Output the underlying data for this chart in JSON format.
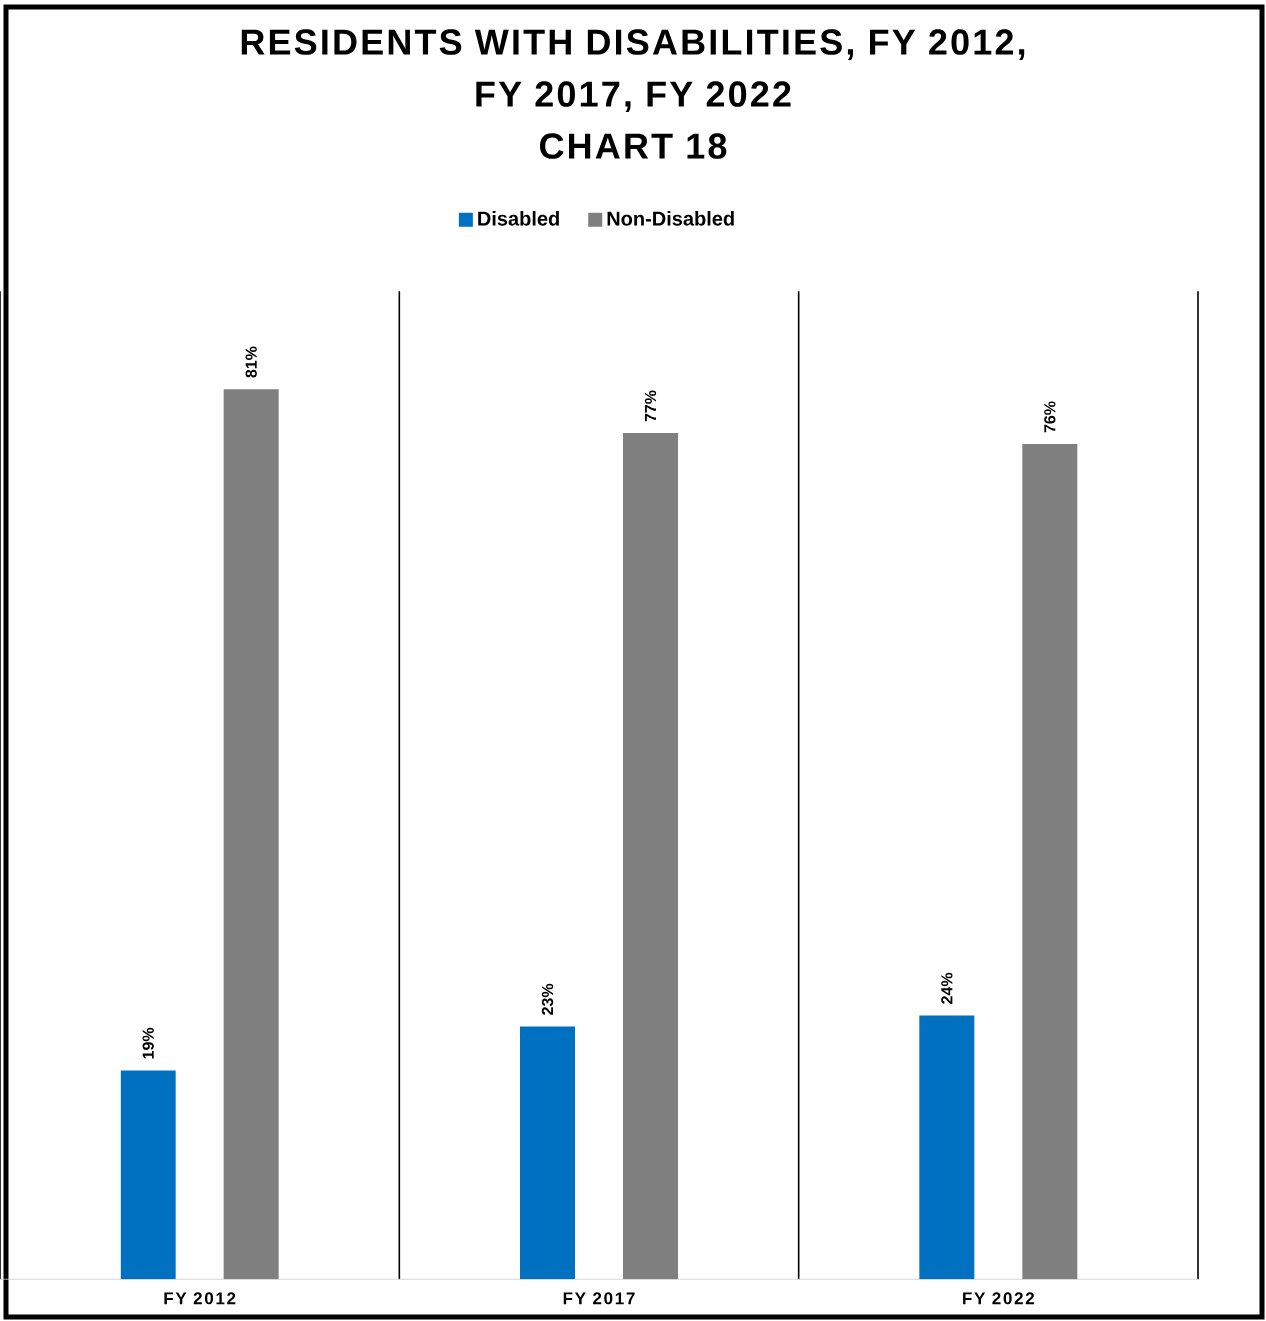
{
  "chart_data": {
    "type": "bar",
    "title": "RESIDENTS WITH DISABILITIES, FY 2012,\nFY 2017, FY 2022\nCHART 18",
    "categories": [
      "FY 2012",
      "FY 2017",
      "FY 2022"
    ],
    "series": [
      {
        "name": "Disabled",
        "color": "#0070c0",
        "values": [
          19,
          23,
          24
        ],
        "value_labels": [
          "19%",
          "23%",
          "24%"
        ]
      },
      {
        "name": "Non-Disabled",
        "color": "#7f7f7f",
        "values": [
          81,
          77,
          76
        ],
        "value_labels": [
          "81%",
          "77%",
          "76%"
        ]
      }
    ],
    "legend": "top",
    "grid": "x",
    "tick_labels": "x"
  }
}
